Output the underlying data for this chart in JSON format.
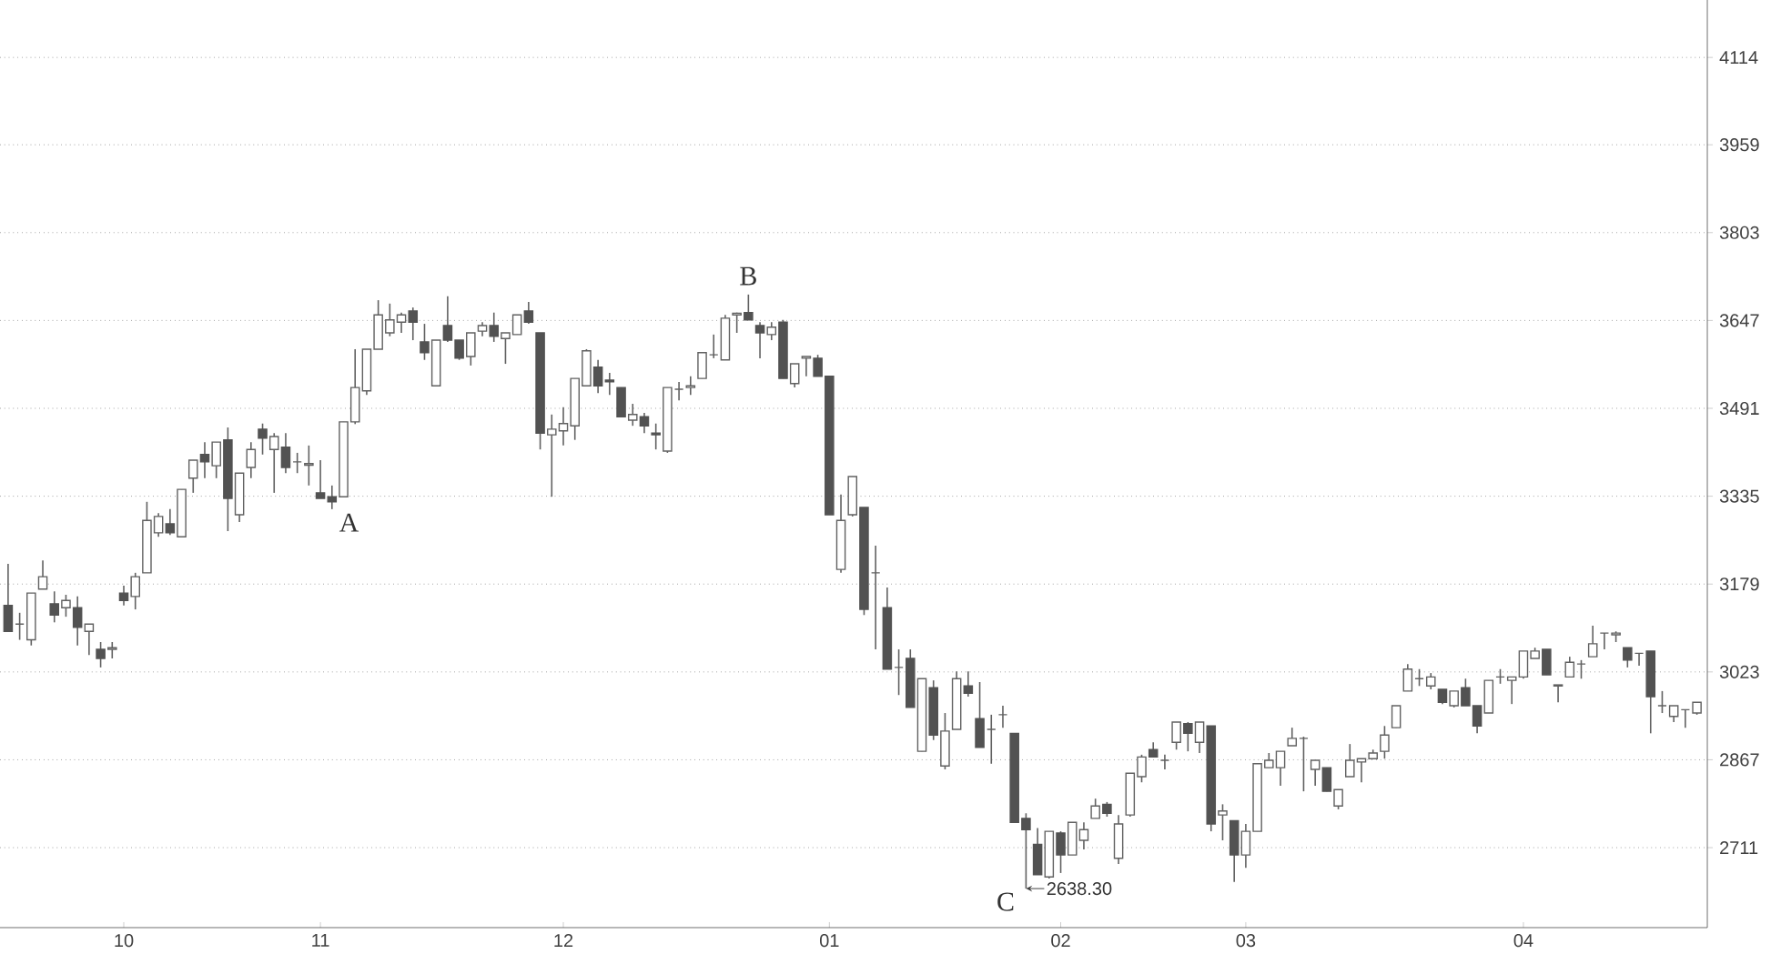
{
  "chart_data": {
    "type": "candlestick",
    "categories": [
      null,
      null,
      null,
      null,
      null,
      null,
      null,
      null,
      null,
      null,
      "10",
      null,
      null,
      null,
      null,
      null,
      null,
      null,
      null,
      null,
      null,
      null,
      null,
      null,
      null,
      null,
      null,
      "11",
      null,
      null,
      null,
      null,
      null,
      null,
      null,
      null,
      null,
      null,
      null,
      null,
      null,
      null,
      null,
      null,
      null,
      null,
      null,
      null,
      "12",
      null,
      null,
      null,
      null,
      null,
      null,
      null,
      null,
      null,
      null,
      null,
      null,
      null,
      null,
      null,
      null,
      null,
      null,
      null,
      null,
      null,
      null,
      "01",
      null,
      null,
      null,
      null,
      null,
      null,
      null,
      null,
      null,
      null,
      null,
      null,
      null,
      null,
      null,
      null,
      null,
      null,
      null,
      "02",
      null,
      null,
      null,
      null,
      null,
      null,
      null,
      null,
      null,
      null,
      null,
      null,
      null,
      null,
      null,
      "03",
      null,
      null,
      null,
      null,
      null,
      null,
      null,
      null,
      null,
      null,
      null,
      null,
      null,
      null,
      null,
      null,
      null,
      null,
      null,
      null,
      null,
      null,
      null,
      "04",
      null,
      null,
      null,
      null,
      null,
      null,
      null,
      null,
      null,
      null,
      null,
      null,
      null,
      null,
      null
    ],
    "ohlc": [
      [
        3141,
        3215,
        3095,
        3095
      ],
      [
        3108,
        3128,
        3080,
        3108
      ],
      [
        3080,
        3163,
        3070,
        3163
      ],
      [
        3170,
        3221,
        3170,
        3192
      ],
      [
        3144,
        3166,
        3111,
        3124
      ],
      [
        3137,
        3160,
        3121,
        3150
      ],
      [
        3137,
        3157,
        3070,
        3102
      ],
      [
        3095,
        3108,
        3053,
        3108
      ],
      [
        3063,
        3076,
        3031,
        3047
      ],
      [
        3063,
        3076,
        3047,
        3066
      ],
      [
        3163,
        3176,
        3141,
        3150
      ],
      [
        3157,
        3199,
        3134,
        3192
      ],
      [
        3199,
        3325,
        3199,
        3292
      ],
      [
        3270,
        3305,
        3263,
        3299
      ],
      [
        3286,
        3312,
        3266,
        3270
      ],
      [
        3263,
        3347,
        3263,
        3347
      ],
      [
        3367,
        3399,
        3341,
        3399
      ],
      [
        3409,
        3431,
        3367,
        3396
      ],
      [
        3389,
        3431,
        3367,
        3431
      ],
      [
        3435,
        3457,
        3273,
        3331
      ],
      [
        3302,
        3376,
        3289,
        3376
      ],
      [
        3386,
        3431,
        3367,
        3418
      ],
      [
        3454,
        3464,
        3409,
        3438
      ],
      [
        3418,
        3447,
        3341,
        3441
      ],
      [
        3422,
        3447,
        3376,
        3386
      ],
      [
        3396,
        3412,
        3376,
        3396
      ],
      [
        3390,
        3425,
        3354,
        3393
      ],
      [
        3341,
        3399,
        3331,
        3331
      ],
      [
        3334,
        3354,
        3312,
        3325
      ],
      [
        3334,
        3467,
        3334,
        3467
      ],
      [
        3467,
        3596,
        3463,
        3528
      ],
      [
        3522,
        3596,
        3515,
        3596
      ],
      [
        3596,
        3683,
        3596,
        3657
      ],
      [
        3625,
        3677,
        3619,
        3648
      ],
      [
        3644,
        3661,
        3625,
        3657
      ],
      [
        3664,
        3670,
        3612,
        3644
      ],
      [
        3609,
        3641,
        3577,
        3590
      ],
      [
        3531,
        3612,
        3531,
        3612
      ],
      [
        3638,
        3690,
        3609,
        3612
      ],
      [
        3612,
        3612,
        3577,
        3580
      ],
      [
        3583,
        3625,
        3567,
        3625
      ],
      [
        3628,
        3644,
        3619,
        3638
      ],
      [
        3638,
        3661,
        3609,
        3619
      ],
      [
        3615,
        3625,
        3570,
        3625
      ],
      [
        3622,
        3657,
        3622,
        3657
      ],
      [
        3664,
        3680,
        3641,
        3644
      ],
      [
        3625,
        3625,
        3418,
        3447
      ],
      [
        3444,
        3480,
        3334,
        3454
      ],
      [
        3451,
        3493,
        3425,
        3464
      ],
      [
        3460,
        3544,
        3435,
        3544
      ],
      [
        3531,
        3596,
        3531,
        3593
      ],
      [
        3564,
        3577,
        3518,
        3531
      ],
      [
        3541,
        3554,
        3515,
        3538
      ],
      [
        3528,
        3528,
        3476,
        3476
      ],
      [
        3470,
        3499,
        3460,
        3480
      ],
      [
        3476,
        3483,
        3447,
        3460
      ],
      [
        3447,
        3464,
        3418,
        3444
      ],
      [
        3415,
        3528,
        3412,
        3528
      ],
      [
        3525,
        3538,
        3505,
        3525
      ],
      [
        3528,
        3548,
        3515,
        3531
      ],
      [
        3544,
        3590,
        3544,
        3590
      ],
      [
        3586,
        3622,
        3580,
        3586
      ],
      [
        3577,
        3657,
        3577,
        3651
      ],
      [
        3657,
        3661,
        3625,
        3660
      ],
      [
        3661,
        3693,
        3648,
        3648
      ],
      [
        3638,
        3644,
        3580,
        3625
      ],
      [
        3622,
        3644,
        3612,
        3635
      ],
      [
        3644,
        3648,
        3544,
        3544
      ],
      [
        3535,
        3570,
        3528,
        3570
      ],
      [
        3580,
        3583,
        3548,
        3583
      ],
      [
        3580,
        3586,
        3548,
        3548
      ],
      [
        3548,
        3548,
        3302,
        3302
      ],
      [
        3205,
        3338,
        3199,
        3292
      ],
      [
        3302,
        3370,
        3299,
        3370
      ],
      [
        3315,
        3315,
        3124,
        3134
      ],
      [
        3199,
        3247,
        3063,
        3199
      ],
      [
        3137,
        3173,
        3028,
        3028
      ],
      [
        3031,
        3063,
        2982,
        3031
      ],
      [
        3047,
        3063,
        2960,
        2960
      ],
      [
        2882,
        3011,
        2882,
        3011
      ],
      [
        2995,
        3008,
        2902,
        2911
      ],
      [
        2856,
        2950,
        2850,
        2918
      ],
      [
        2921,
        3024,
        2921,
        3011
      ],
      [
        2998,
        3024,
        2979,
        2985
      ],
      [
        2940,
        3005,
        2889,
        2889
      ],
      [
        2921,
        2947,
        2860,
        2921
      ],
      [
        2947,
        2963,
        2924,
        2947
      ],
      [
        2914,
        2914,
        2756,
        2756
      ],
      [
        2763,
        2772,
        2638.3,
        2743
      ],
      [
        2717,
        2746,
        2663,
        2663
      ],
      [
        2659,
        2740,
        2656,
        2740
      ],
      [
        2737,
        2740,
        2666,
        2698
      ],
      [
        2698,
        2756,
        2698,
        2756
      ],
      [
        2724,
        2756,
        2708,
        2743
      ],
      [
        2763,
        2798,
        2763,
        2785
      ],
      [
        2788,
        2792,
        2766,
        2772
      ],
      [
        2692,
        2769,
        2682,
        2753
      ],
      [
        2769,
        2843,
        2766,
        2843
      ],
      [
        2837,
        2876,
        2827,
        2872
      ],
      [
        2885,
        2898,
        2872,
        2872
      ],
      [
        2866,
        2876,
        2850,
        2866
      ],
      [
        2898,
        2934,
        2885,
        2934
      ],
      [
        2931,
        2934,
        2882,
        2914
      ],
      [
        2898,
        2934,
        2879,
        2934
      ],
      [
        2927,
        2927,
        2740,
        2753
      ],
      [
        2769,
        2788,
        2724,
        2776
      ],
      [
        2759,
        2759,
        2650,
        2698
      ],
      [
        2698,
        2753,
        2675,
        2740
      ],
      [
        2740,
        2860,
        2740,
        2860
      ],
      [
        2853,
        2879,
        2853,
        2866
      ],
      [
        2853,
        2882,
        2821,
        2882
      ],
      [
        2892,
        2924,
        2892,
        2905
      ],
      [
        2905,
        2908,
        2811,
        2905
      ],
      [
        2850,
        2866,
        2821,
        2866
      ],
      [
        2853,
        2853,
        2811,
        2811
      ],
      [
        2785,
        2814,
        2779,
        2814
      ],
      [
        2837,
        2895,
        2837,
        2866
      ],
      [
        2863,
        2869,
        2827,
        2869
      ],
      [
        2869,
        2885,
        2869,
        2879
      ],
      [
        2882,
        2927,
        2869,
        2911
      ],
      [
        2924,
        2963,
        2924,
        2963
      ],
      [
        2989,
        3037,
        2989,
        3028
      ],
      [
        3011,
        3028,
        2998,
        3011
      ],
      [
        2998,
        3021,
        2992,
        3014
      ],
      [
        2992,
        2992,
        2966,
        2969
      ],
      [
        2963,
        2989,
        2960,
        2989
      ],
      [
        2995,
        3011,
        2963,
        2963
      ],
      [
        2963,
        2963,
        2914,
        2927
      ],
      [
        2950,
        3008,
        2950,
        3008
      ],
      [
        3014,
        3028,
        3002,
        3014
      ],
      [
        3008,
        3014,
        2966,
        3014
      ],
      [
        3014,
        3060,
        3011,
        3060
      ],
      [
        3047,
        3066,
        3047,
        3060
      ],
      [
        3063,
        3063,
        3018,
        3018
      ],
      [
        2998,
        3000,
        2969,
        3000
      ],
      [
        3014,
        3050,
        3014,
        3040
      ],
      [
        3037,
        3044,
        3011,
        3037
      ],
      [
        3050,
        3105,
        3050,
        3073
      ],
      [
        3092,
        3092,
        3063,
        3092
      ],
      [
        3089,
        3095,
        3076,
        3092
      ],
      [
        3066,
        3066,
        3031,
        3044
      ],
      [
        3056,
        3056,
        3034,
        3056
      ],
      [
        3060,
        3060,
        2914,
        2979
      ],
      [
        2963,
        2989,
        2950,
        2963
      ],
      [
        2944,
        2963,
        2934,
        2963
      ],
      [
        2956,
        2956,
        2924,
        2956
      ],
      [
        2950,
        2969,
        2947,
        2969
      ]
    ],
    "ylim": [
      2569,
      4216
    ],
    "yticks": [
      2711,
      2867,
      3023,
      3179,
      3335,
      3491,
      3647,
      3803,
      3959,
      4114
    ],
    "grid": "y",
    "annotations": [
      {
        "text": "A",
        "y": 3334
      },
      {
        "text": "B",
        "y": 3693
      },
      "C",
      "2638.30"
    ]
  }
}
